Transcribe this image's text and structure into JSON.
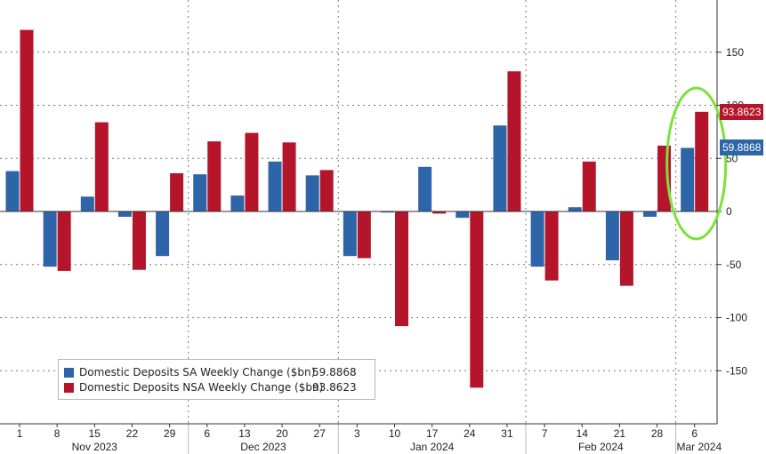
{
  "colors": {
    "sa": "#2e64a8",
    "nsa": "#b5152b",
    "highlight": "#7be23a"
  },
  "legend": {
    "sa": {
      "name": "Domestic Deposits SA Weekly Change ($bn)",
      "value": "59.8868"
    },
    "nsa": {
      "name": "Domestic Deposits NSA Weekly Change ($bn)",
      "value": "93.8623"
    }
  },
  "last_value_tags": {
    "sa": "59.8868",
    "nsa": "93.8623"
  },
  "chart_data": {
    "type": "bar",
    "categories": [
      "1",
      "8",
      "15",
      "22",
      "29",
      "6",
      "13",
      "20",
      "27",
      "3",
      "10",
      "17",
      "24",
      "31",
      "7",
      "14",
      "21",
      "28",
      "6"
    ],
    "month_labels": [
      "Nov 2023",
      "Dec 2023",
      "Jan 2024",
      "Feb 2024",
      "Mar 2024"
    ],
    "month_of_category": [
      0,
      0,
      0,
      0,
      0,
      1,
      1,
      1,
      1,
      2,
      2,
      2,
      2,
      2,
      3,
      3,
      3,
      3,
      4
    ],
    "series": [
      {
        "name": "Domestic Deposits SA Weekly Change ($bn)",
        "values": [
          38,
          -52,
          14,
          -5,
          -42,
          35,
          15,
          47,
          34,
          -42,
          -1,
          42,
          -6,
          81,
          -52,
          4,
          -46,
          -5,
          59.8868
        ]
      },
      {
        "name": "Domestic Deposits NSA Weekly Change ($bn)",
        "values": [
          171,
          -56,
          84,
          -55,
          36,
          66,
          74,
          65,
          39,
          -44,
          -108,
          -2,
          -166,
          132,
          -65,
          47,
          -70,
          62,
          93.8623
        ]
      }
    ],
    "yticks": [
      150,
      100,
      50,
      0,
      -50,
      -100,
      -150
    ],
    "ylim": [
      -200,
      200
    ],
    "yaxis_side": "right",
    "grid": true,
    "legend_position": "bottom-left",
    "highlight": "last category circled"
  }
}
